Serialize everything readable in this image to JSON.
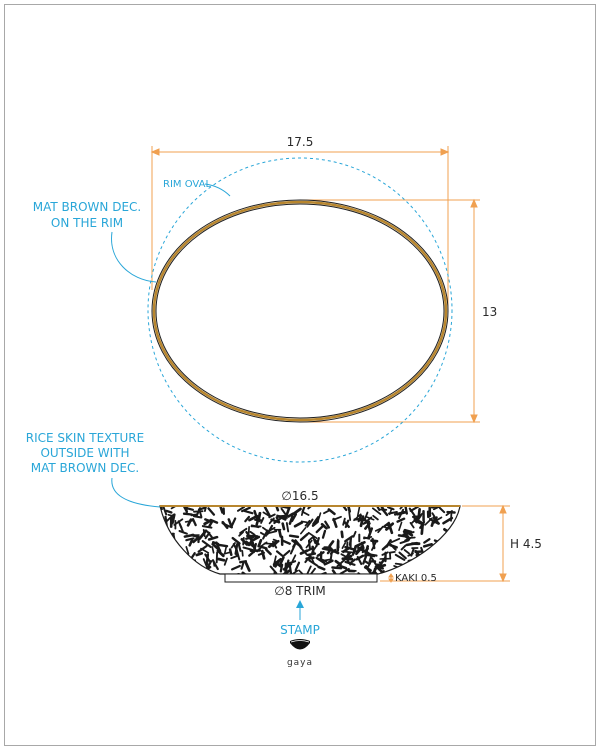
{
  "colors": {
    "frame": "#a8a8a8",
    "dimension_line": "#f0a050",
    "annotation": "#29a6d8",
    "rim_decoration": "#b8862e",
    "outline": "#1e1e1e",
    "texture": "#1a1a1a"
  },
  "top_view": {
    "width_dimension": "17.5",
    "height_dimension": "13",
    "rim_oval_label": "RIM OVAL",
    "rim_note_line1": "MAT BROWN DEC.",
    "rim_note_line2": "ON THE RIM"
  },
  "side_view": {
    "diameter_label": "∅16.5",
    "height_label": "H 4.5",
    "foot_label": "KAKI 0.5",
    "trim_label": "∅8 TRIM",
    "texture_note_line1": "RICE SKIN TEXTURE",
    "texture_note_line2": "OUTSIDE WITH",
    "texture_note_line3": "MAT BROWN DEC."
  },
  "stamp": {
    "label": "STAMP",
    "logo_text": "gaya",
    "logo_icon": "bowl-logo-icon"
  }
}
